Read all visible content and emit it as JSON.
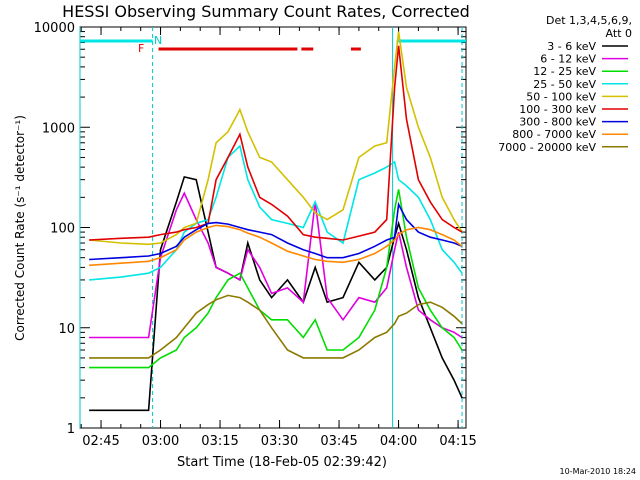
{
  "chart_data": {
    "type": "line",
    "title": "HESSI Observing Summary Count Rates, Corrected",
    "xlabel": "Start Time (18-Feb-05 02:39:42)",
    "ylabel": "Corrected Count Rate (s⁻¹ detector⁻¹)",
    "yscale": "log",
    "ylim": [
      1,
      10000
    ],
    "xlim": [
      "02:39:42",
      "04:17:00"
    ],
    "x_ticks": [
      "02:45",
      "03:00",
      "03:15",
      "03:30",
      "03:45",
      "04:00",
      "04:15"
    ],
    "y_ticks": [
      "1",
      "10",
      "100",
      "1000",
      "10000"
    ],
    "grid": false,
    "legend_title": "Det 1,3,4,5,6,9,",
    "legend_subtitle": "Att 0",
    "legend_position": "right",
    "timestamp": "10-Mar-2010 18:24",
    "flags": {
      "night_label": "N",
      "flare_label": "F",
      "color_night": "#00e6e6",
      "color_flare": "#e00000",
      "night_bars": [
        [
          "02:39:42",
          "02:58:00"
        ],
        [
          "03:59:30",
          "04:17:00"
        ]
      ],
      "flare_bars": [
        [
          "02:59:30",
          "03:34:30"
        ],
        [
          "03:35:30",
          "03:38:30"
        ],
        [
          "03:48:00",
          "03:50:30"
        ]
      ]
    },
    "vlines": {
      "dashed": [
        "02:58:00",
        "04:16:00"
      ],
      "solid": [
        "02:39:42",
        "03:58:30"
      ]
    },
    "x": [
      "02:42",
      "02:50",
      "02:57",
      "03:00",
      "03:04",
      "03:06",
      "03:09",
      "03:12",
      "03:14",
      "03:17",
      "03:20",
      "03:22",
      "03:25",
      "03:28",
      "03:32",
      "03:36",
      "03:39",
      "03:42",
      "03:46",
      "03:50",
      "03:54",
      "03:57",
      "03:59",
      "04:00",
      "04:02",
      "04:05",
      "04:08",
      "04:11",
      "04:14",
      "04:16"
    ],
    "series": [
      {
        "name": "3 - 6 keV",
        "color": "#000000",
        "values": [
          1.5,
          1.5,
          1.5,
          60,
          180,
          320,
          300,
          90,
          40,
          35,
          30,
          70,
          30,
          20,
          30,
          18,
          40,
          18,
          20,
          45,
          30,
          40,
          80,
          110,
          60,
          20,
          10,
          5,
          3,
          2
        ]
      },
      {
        "name": "6 - 12 keV",
        "color": "#e000e0",
        "values": [
          8,
          8,
          8,
          50,
          150,
          220,
          120,
          70,
          40,
          35,
          30,
          60,
          40,
          22,
          25,
          18,
          180,
          20,
          12,
          20,
          18,
          25,
          60,
          90,
          40,
          15,
          12,
          10,
          9,
          8
        ]
      },
      {
        "name": "12 - 25 keV",
        "color": "#00dd00",
        "values": [
          4,
          4,
          4,
          5,
          6,
          8,
          10,
          14,
          20,
          30,
          35,
          25,
          15,
          12,
          12,
          8,
          12,
          6,
          6,
          8,
          15,
          40,
          150,
          240,
          80,
          25,
          15,
          10,
          8,
          6
        ]
      },
      {
        "name": "25 - 50 keV",
        "color": "#00e6e6",
        "values": [
          30,
          32,
          35,
          40,
          60,
          90,
          110,
          120,
          200,
          500,
          650,
          300,
          160,
          120,
          110,
          100,
          180,
          90,
          70,
          300,
          350,
          400,
          450,
          300,
          260,
          200,
          120,
          60,
          45,
          35
        ]
      },
      {
        "name": "50 - 100 keV",
        "color": "#d4c000",
        "values": [
          75,
          70,
          68,
          70,
          85,
          100,
          110,
          300,
          700,
          900,
          1500,
          900,
          500,
          450,
          300,
          200,
          140,
          120,
          150,
          500,
          650,
          700,
          4000,
          9000,
          2500,
          1000,
          500,
          200,
          120,
          90
        ]
      },
      {
        "name": "100 - 300 keV",
        "color": "#e00000",
        "values": [
          75,
          78,
          80,
          85,
          90,
          95,
          100,
          110,
          300,
          500,
          850,
          400,
          200,
          170,
          130,
          85,
          80,
          78,
          75,
          82,
          90,
          120,
          2500,
          6500,
          1200,
          300,
          180,
          120,
          100,
          90
        ]
      },
      {
        "name": "300 - 800 keV",
        "color": "#0000e0",
        "values": [
          48,
          50,
          52,
          55,
          65,
          80,
          95,
          110,
          112,
          108,
          100,
          95,
          90,
          85,
          70,
          60,
          55,
          50,
          50,
          55,
          65,
          75,
          80,
          170,
          120,
          90,
          80,
          75,
          70,
          65
        ]
      },
      {
        "name": "800 - 7000 keV",
        "color": "#ff8800",
        "values": [
          42,
          44,
          46,
          50,
          60,
          75,
          90,
          100,
          105,
          102,
          95,
          88,
          80,
          70,
          58,
          52,
          48,
          46,
          45,
          48,
          55,
          65,
          75,
          85,
          95,
          100,
          95,
          85,
          75,
          65
        ]
      },
      {
        "name": "7000 - 20000 keV",
        "color": "#8b7a00",
        "values": [
          5,
          5,
          5,
          6,
          8,
          10,
          14,
          17,
          19,
          21,
          20,
          18,
          15,
          10,
          6,
          5,
          5,
          5,
          5,
          6,
          8,
          9,
          11,
          13,
          14,
          17,
          18,
          16,
          13,
          11
        ]
      }
    ]
  }
}
